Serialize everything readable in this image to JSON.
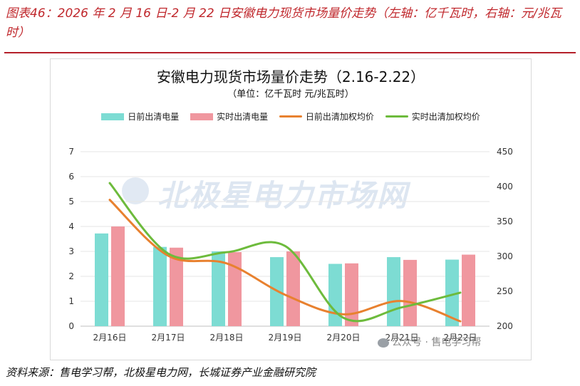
{
  "caption": "图表46：2026 年 2 月 16 日-2 月 22 日安徽电力现货市场量价走势（左轴：亿千瓦时，右轴：元/兆瓦时）",
  "source": "资料来源：售电学习帮，北极星电力网，长城证券产业金融研究院",
  "watermark": "北极星电力市场网",
  "wechat": "公众号 · 售电学习帮",
  "chart_data": {
    "type": "bar",
    "title": "安徽电力现货市场量价走势（2.16-2.22）",
    "subtitle": "（单位：亿千瓦时 元/兆瓦时）",
    "categories": [
      "2月16日",
      "2月17日",
      "2月18日",
      "2月19日",
      "2月20日",
      "2月21日",
      "2月22日"
    ],
    "left_axis": {
      "ylim": [
        0,
        7
      ],
      "ticks": [
        0,
        1,
        2,
        3,
        4,
        5,
        6,
        7
      ]
    },
    "right_axis": {
      "ylim": [
        200,
        450
      ],
      "ticks": [
        200,
        250,
        300,
        350,
        400,
        450
      ]
    },
    "grid": true,
    "legend": "top",
    "series": [
      {
        "name": "日前出清电量",
        "type": "bar",
        "axis": "left",
        "color": "#7ddcd3",
        "values": [
          3.72,
          3.18,
          3.0,
          2.77,
          2.5,
          2.77,
          2.67
        ]
      },
      {
        "name": "实时出清电量",
        "type": "bar",
        "axis": "left",
        "color": "#f0979f",
        "values": [
          4.0,
          3.15,
          2.97,
          3.0,
          2.52,
          2.66,
          2.87
        ]
      },
      {
        "name": "日前出清加权均价",
        "type": "line",
        "axis": "right",
        "color": "#e8812f",
        "values": [
          381,
          301,
          290,
          245,
          217,
          236,
          207
        ]
      },
      {
        "name": "实时出清加权均价",
        "type": "line",
        "axis": "right",
        "color": "#6dbb3c",
        "values": [
          405,
          304,
          306,
          315,
          212,
          227,
          248
        ]
      }
    ]
  }
}
